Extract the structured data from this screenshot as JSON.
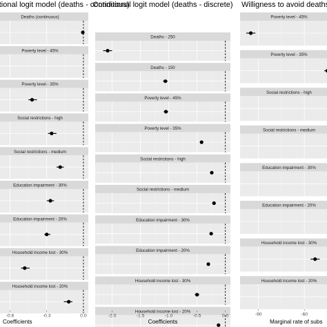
{
  "chart_data": [
    {
      "type": "scatter",
      "title": "Conditional logit model (deaths - continuous)",
      "xlabel": "Coefficients",
      "ticks": [
        -0.6,
        -0.3,
        0.0
      ],
      "tick_labels": [
        "-0.6",
        "-0.3",
        "0.0"
      ],
      "xlim": [
        -0.75,
        0.04
      ],
      "facets": [
        {
          "label": "Deaths (continuous)",
          "estimate": -0.005,
          "lo": -0.012,
          "hi": 0.002
        },
        {
          "label": "Poverty level - 45%",
          "estimate": null,
          "lo": null,
          "hi": null
        },
        {
          "label": "Poverty level - 35%",
          "estimate": -0.42,
          "lo": -0.45,
          "hi": -0.38
        },
        {
          "label": "Social restrictions - high",
          "estimate": -0.26,
          "lo": -0.29,
          "hi": -0.22
        },
        {
          "label": "Social restrictions - medium",
          "estimate": -0.19,
          "lo": -0.22,
          "hi": -0.16
        },
        {
          "label": "Education impairment - 30%",
          "estimate": -0.27,
          "lo": -0.3,
          "hi": -0.24
        },
        {
          "label": "Education impairment - 20%",
          "estimate": -0.3,
          "lo": -0.32,
          "hi": -0.27
        },
        {
          "label": "Household income lost - 30%",
          "estimate": -0.48,
          "lo": -0.51,
          "hi": -0.44
        },
        {
          "label": "Household income lost - 20%",
          "estimate": -0.12,
          "lo": -0.16,
          "hi": -0.09
        }
      ]
    },
    {
      "type": "scatter",
      "title": "Conditional logit model (deaths - discrete)",
      "xlabel": "Coefficients",
      "ticks": [
        -2.0,
        -1.5,
        -1.0,
        -0.5,
        0.0
      ],
      "tick_labels": [
        "-2.0",
        "-1.5",
        "-1.0",
        "-0.5",
        "0.0"
      ],
      "xlim": [
        -2.3,
        0.09
      ],
      "facets": [
        {
          "label": "Deaths - 250",
          "estimate": -2.08,
          "lo": -2.16,
          "hi": -2.0
        },
        {
          "label": "Deaths - 150",
          "estimate": -1.06,
          "lo": -1.1,
          "hi": -1.02
        },
        {
          "label": "Poverty level - 45%",
          "estimate": -1.05,
          "lo": -1.09,
          "hi": -1.01
        },
        {
          "label": "Poverty level - 35%",
          "estimate": -0.42,
          "lo": -0.45,
          "hi": -0.39
        },
        {
          "label": "Social restrictions - high",
          "estimate": -0.24,
          "lo": -0.27,
          "hi": -0.21
        },
        {
          "label": "Social restrictions - medium",
          "estimate": -0.2,
          "lo": -0.23,
          "hi": -0.17
        },
        {
          "label": "Education impairment - 30%",
          "estimate": -0.25,
          "lo": -0.28,
          "hi": -0.22
        },
        {
          "label": "Education impairment - 20%",
          "estimate": -0.3,
          "lo": -0.33,
          "hi": -0.27
        },
        {
          "label": "Household income lost - 30%",
          "estimate": -0.5,
          "lo": -0.54,
          "hi": -0.46
        },
        {
          "label": "Household income lost - 20%",
          "estimate": -0.12,
          "lo": -0.15,
          "hi": -0.09
        }
      ]
    },
    {
      "type": "scatter",
      "title": "Willigness to avoid deaths",
      "xlabel": "Marginal rate of subs",
      "ticks": [
        -90,
        -60
      ],
      "tick_labels": [
        "-90",
        "-60"
      ],
      "xlim": [
        -102,
        -38
      ],
      "facets": [
        {
          "label": "Poverty level - 45%",
          "estimate": -95,
          "lo": -98,
          "hi": -92
        },
        {
          "label": "Poverty level - 35%",
          "estimate": -45,
          "lo": -47,
          "hi": -43
        },
        {
          "label": "Social restrictions - high",
          "estimate": null,
          "lo": null,
          "hi": null
        },
        {
          "label": "Social restrictions - medium",
          "estimate": null,
          "lo": null,
          "hi": null
        },
        {
          "label": "Education impairment - 30%",
          "estimate": null,
          "lo": null,
          "hi": null
        },
        {
          "label": "Education impairment - 20%",
          "estimate": null,
          "lo": null,
          "hi": null
        },
        {
          "label": "Household income lost - 30%",
          "estimate": -53,
          "lo": -56,
          "hi": -50
        },
        {
          "label": "Household income lost - 20%",
          "estimate": null,
          "lo": null,
          "hi": null
        }
      ]
    }
  ]
}
